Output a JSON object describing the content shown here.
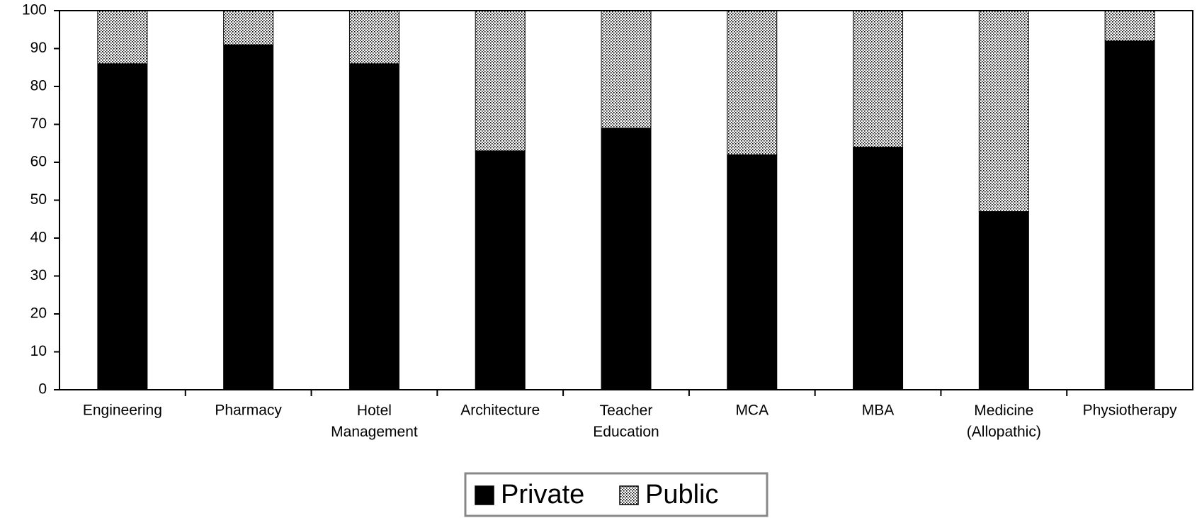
{
  "chart_data": {
    "type": "stacked_bar",
    "categories": [
      "Engineering",
      "Pharmacy",
      "Hotel Management",
      "Architecture",
      "Teacher Education",
      "MCA",
      "MBA",
      "Medicine (Allopathic)",
      "Physiotherapy"
    ],
    "series": [
      {
        "name": "Private",
        "color": "#000000",
        "values": [
          86,
          91,
          86,
          63,
          69,
          62,
          64,
          47,
          92
        ]
      },
      {
        "name": "Public",
        "color": "#000000",
        "pattern": "dotted",
        "values": [
          14,
          9,
          14,
          37,
          31,
          38,
          36,
          53,
          8
        ]
      }
    ],
    "ylim": [
      0,
      100
    ],
    "yticks": [
      0,
      10,
      20,
      30,
      40,
      50,
      60,
      70,
      80,
      90,
      100
    ],
    "legend": "bottom"
  }
}
